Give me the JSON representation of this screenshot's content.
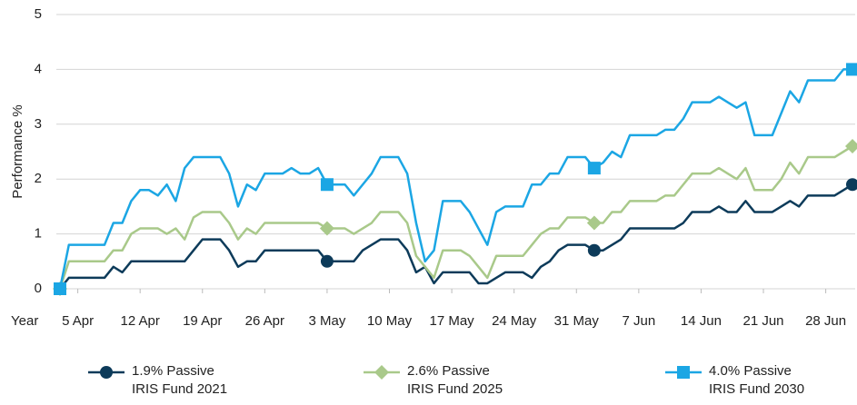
{
  "chart_data": {
    "type": "line",
    "ylabel": "Performance %",
    "xlabel": "Year",
    "x": [
      3,
      4,
      5,
      6,
      7,
      8,
      9,
      10,
      11,
      12,
      13,
      14,
      15,
      16,
      17,
      18,
      19,
      20,
      21,
      22,
      23,
      24,
      25,
      26,
      27,
      28,
      29,
      30,
      31,
      32,
      33,
      34,
      35,
      36,
      37,
      38,
      39,
      40,
      41,
      42,
      43,
      44,
      45,
      46,
      47,
      48,
      49,
      50,
      51,
      52,
      53,
      54,
      55,
      56,
      57,
      58,
      59,
      60,
      61,
      62,
      63,
      64,
      65,
      66,
      67,
      68,
      69,
      70,
      71,
      72,
      73,
      74,
      75,
      76,
      77,
      78,
      79,
      80,
      81,
      82,
      83,
      84,
      85,
      86,
      87,
      88,
      89,
      90,
      91,
      92
    ],
    "series": [
      {
        "name": "1.9% Passive IRIS Fund 2021",
        "color": "#0d3b5a",
        "marker": "circle",
        "values": [
          0,
          0.2,
          0.2,
          0.2,
          0.2,
          0.2,
          0.4,
          0.3,
          0.5,
          0.5,
          0.5,
          0.5,
          0.5,
          0.5,
          0.5,
          0.7,
          0.9,
          0.9,
          0.9,
          0.7,
          0.4,
          0.5,
          0.5,
          0.7,
          0.7,
          0.7,
          0.7,
          0.7,
          0.7,
          0.7,
          0.5,
          0.5,
          0.5,
          0.5,
          0.7,
          0.8,
          0.9,
          0.9,
          0.9,
          0.7,
          0.3,
          0.4,
          0.1,
          0.3,
          0.3,
          0.3,
          0.3,
          0.1,
          0.1,
          0.2,
          0.3,
          0.3,
          0.3,
          0.2,
          0.4,
          0.5,
          0.7,
          0.8,
          0.8,
          0.8,
          0.7,
          0.7,
          0.8,
          0.9,
          1.1,
          1.1,
          1.1,
          1.1,
          1.1,
          1.1,
          1.2,
          1.4,
          1.4,
          1.4,
          1.5,
          1.4,
          1.4,
          1.6,
          1.4,
          1.4,
          1.4,
          1.5,
          1.6,
          1.5,
          1.7,
          1.7,
          1.7,
          1.7,
          1.8,
          1.9
        ]
      },
      {
        "name": "2.6% Passive IRIS Fund 2025",
        "color": "#a9c98a",
        "marker": "diamond",
        "values": [
          0,
          0.5,
          0.5,
          0.5,
          0.5,
          0.5,
          0.7,
          0.7,
          1.0,
          1.1,
          1.1,
          1.1,
          1.0,
          1.1,
          0.9,
          1.3,
          1.4,
          1.4,
          1.4,
          1.2,
          0.9,
          1.1,
          1.0,
          1.2,
          1.2,
          1.2,
          1.2,
          1.2,
          1.2,
          1.2,
          1.1,
          1.1,
          1.1,
          1.0,
          1.1,
          1.2,
          1.4,
          1.4,
          1.4,
          1.2,
          0.6,
          0.4,
          0.2,
          0.7,
          0.7,
          0.7,
          0.6,
          0.4,
          0.2,
          0.6,
          0.6,
          0.6,
          0.6,
          0.8,
          1.0,
          1.1,
          1.1,
          1.3,
          1.3,
          1.3,
          1.2,
          1.2,
          1.4,
          1.4,
          1.6,
          1.6,
          1.6,
          1.6,
          1.7,
          1.7,
          1.9,
          2.1,
          2.1,
          2.1,
          2.2,
          2.1,
          2.0,
          2.2,
          1.8,
          1.8,
          1.8,
          2.0,
          2.3,
          2.1,
          2.4,
          2.4,
          2.4,
          2.4,
          2.5,
          2.6
        ]
      },
      {
        "name": "4.0% Passive IRIS Fund 2030",
        "color": "#1ba6e4",
        "marker": "square",
        "values": [
          0,
          0.8,
          0.8,
          0.8,
          0.8,
          0.8,
          1.2,
          1.2,
          1.6,
          1.8,
          1.8,
          1.7,
          1.9,
          1.6,
          2.2,
          2.4,
          2.4,
          2.4,
          2.4,
          2.1,
          1.5,
          1.9,
          1.8,
          2.1,
          2.1,
          2.1,
          2.2,
          2.1,
          2.1,
          2.2,
          1.9,
          1.9,
          1.9,
          1.7,
          1.9,
          2.1,
          2.4,
          2.4,
          2.4,
          2.1,
          1.2,
          0.5,
          0.7,
          1.6,
          1.6,
          1.6,
          1.4,
          1.1,
          0.8,
          1.4,
          1.5,
          1.5,
          1.5,
          1.9,
          1.9,
          2.1,
          2.1,
          2.4,
          2.4,
          2.4,
          2.2,
          2.3,
          2.5,
          2.4,
          2.8,
          2.8,
          2.8,
          2.8,
          2.9,
          2.9,
          3.1,
          3.4,
          3.4,
          3.4,
          3.5,
          3.4,
          3.3,
          3.4,
          2.8,
          2.8,
          2.8,
          3.2,
          3.6,
          3.4,
          3.8,
          3.8,
          3.8,
          3.8,
          4.0,
          4.0
        ]
      }
    ],
    "xlim": [
      3,
      92
    ],
    "xticks": [
      {
        "value": 5,
        "label": "5 Apr"
      },
      {
        "value": 12,
        "label": "12 Apr"
      },
      {
        "value": 19,
        "label": "19 Apr"
      },
      {
        "value": 26,
        "label": "26 Apr"
      },
      {
        "value": 33,
        "label": "3 May"
      },
      {
        "value": 40,
        "label": "10 May"
      },
      {
        "value": 47,
        "label": "17 May"
      },
      {
        "value": 54,
        "label": "24 May"
      },
      {
        "value": 61,
        "label": "31 May"
      },
      {
        "value": 68,
        "label": "7 Jun"
      },
      {
        "value": 75,
        "label": "14 Jun"
      },
      {
        "value": 82,
        "label": "21 Jun"
      },
      {
        "value": 89,
        "label": "28 Jun"
      }
    ],
    "ylim": [
      0,
      5
    ],
    "yticks": [
      0,
      1,
      2,
      3,
      4,
      5
    ],
    "grid": true,
    "legend": "bottom"
  }
}
